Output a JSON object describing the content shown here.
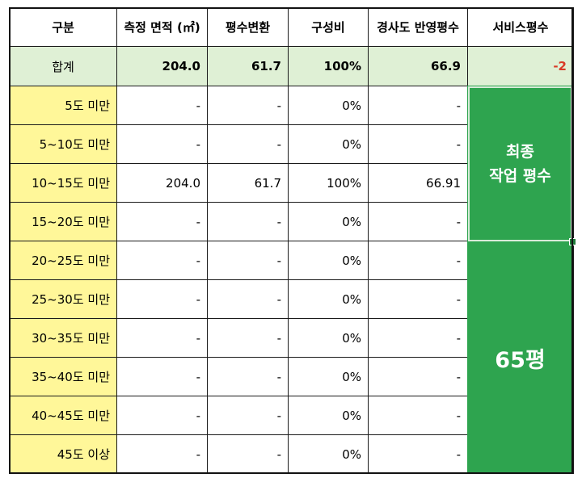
{
  "headers": [
    "구분",
    "측정 면적 (㎡)",
    "평수변환",
    "구성비",
    "경사도 반영평수",
    "서비스평수"
  ],
  "total": {
    "label": "합계",
    "area": "204.0",
    "pyeong": "61.7",
    "ratio": "100%",
    "slope_pyeong": "66.9",
    "service": "-2"
  },
  "rows": [
    {
      "label": "5도 미만",
      "area": "-",
      "pyeong": "-",
      "ratio": "0%",
      "slope_pyeong": "-"
    },
    {
      "label": "5~10도 미만",
      "area": "-",
      "pyeong": "-",
      "ratio": "0%",
      "slope_pyeong": "-"
    },
    {
      "label": "10~15도 미만",
      "area": "204.0",
      "pyeong": "61.7",
      "ratio": "100%",
      "slope_pyeong": "66.91"
    },
    {
      "label": "15~20도 미만",
      "area": "-",
      "pyeong": "-",
      "ratio": "0%",
      "slope_pyeong": "-"
    },
    {
      "label": "20~25도 미만",
      "area": "-",
      "pyeong": "-",
      "ratio": "0%",
      "slope_pyeong": "-"
    },
    {
      "label": "25~30도 미만",
      "area": "-",
      "pyeong": "-",
      "ratio": "0%",
      "slope_pyeong": "-"
    },
    {
      "label": "30~35도 미만",
      "area": "-",
      "pyeong": "-",
      "ratio": "0%",
      "slope_pyeong": "-"
    },
    {
      "label": "35~40도 미만",
      "area": "-",
      "pyeong": "-",
      "ratio": "0%",
      "slope_pyeong": "-"
    },
    {
      "label": "40~45도 미만",
      "area": "-",
      "pyeong": "-",
      "ratio": "0%",
      "slope_pyeong": "-"
    },
    {
      "label": "45도 이상",
      "area": "-",
      "pyeong": "-",
      "ratio": "0%",
      "slope_pyeong": "-"
    }
  ],
  "final_box": {
    "line1": "최종",
    "line2": "작업 평수"
  },
  "result_box": {
    "value": "65평"
  },
  "colors": {
    "header_bg": "#ffffff",
    "total_bg": "#dff0d5",
    "category_bg": "#fff799",
    "box_green": "#2ea44f",
    "negative_red": "#d93a26"
  }
}
